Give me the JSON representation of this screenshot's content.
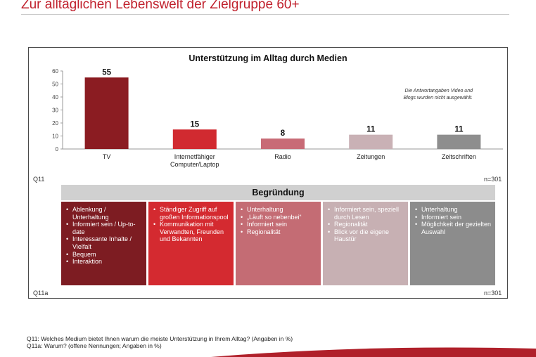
{
  "page": {
    "title": "Zur alltäglichen Lebenswelt der Zielgruppe 60+"
  },
  "chart_data": {
    "type": "bar",
    "title": "Unterstützung im Alltag durch Medien",
    "categories": [
      "TV",
      "Internetfähiger\nComputer/Laptop",
      "Radio",
      "Zeitungen",
      "Zeitschriften"
    ],
    "values": [
      55,
      15,
      8,
      11,
      11
    ],
    "bar_colors": [
      "#8b1c22",
      "#d12a30",
      "#c86b76",
      "#c9b1b5",
      "#8e8e8e"
    ],
    "ylim": [
      0,
      60
    ],
    "yticks": [
      0,
      10,
      20,
      30,
      40,
      50,
      60
    ],
    "grid": false,
    "xlabel": "",
    "ylabel": "",
    "note": [
      "Die Antwortangaben Video und",
      "Blogs wurden nicht ausgewählt."
    ]
  },
  "q11": {
    "label": "Q11",
    "n": "n=301"
  },
  "begruendung": {
    "header": "Begründung",
    "label": "Q11a",
    "n": "n=301",
    "boxes": [
      {
        "color": "#7d1c22",
        "items": [
          "Ablenkung / Unterhaltung",
          "Informiert sein / Up-to-date",
          "Interessante Inhalte / Vielfalt",
          "Bequem",
          "Interaktion"
        ]
      },
      {
        "color": "#d42a30",
        "items": [
          "Ständiger Zugriff auf großen Informationspool",
          "Kommunikation mit Verwandten, Freunden und Bekannten"
        ]
      },
      {
        "color": "#c46c74",
        "items": [
          "Unterhaltung",
          "„Läuft so nebenbei“",
          "Informiert sein",
          "Regionalität"
        ]
      },
      {
        "color": "#c7b0b3",
        "items": [
          "Informiert sein, speziell durch Lesen",
          "Regionalität",
          "Blick vor die eigene Haustür"
        ]
      },
      {
        "color": "#8c8c8c",
        "items": [
          "Unterhaltung",
          "Informiert sein",
          "Möglichkeit der gezielten Auswahl"
        ]
      }
    ]
  },
  "footnotes": [
    "Q11: Welches Medium bietet Ihnen warum die meiste Unterstützung in Ihrem Alltag? (Angaben in %)",
    "Q11a: Warum? (offene Nennungen; Angaben in %)"
  ]
}
